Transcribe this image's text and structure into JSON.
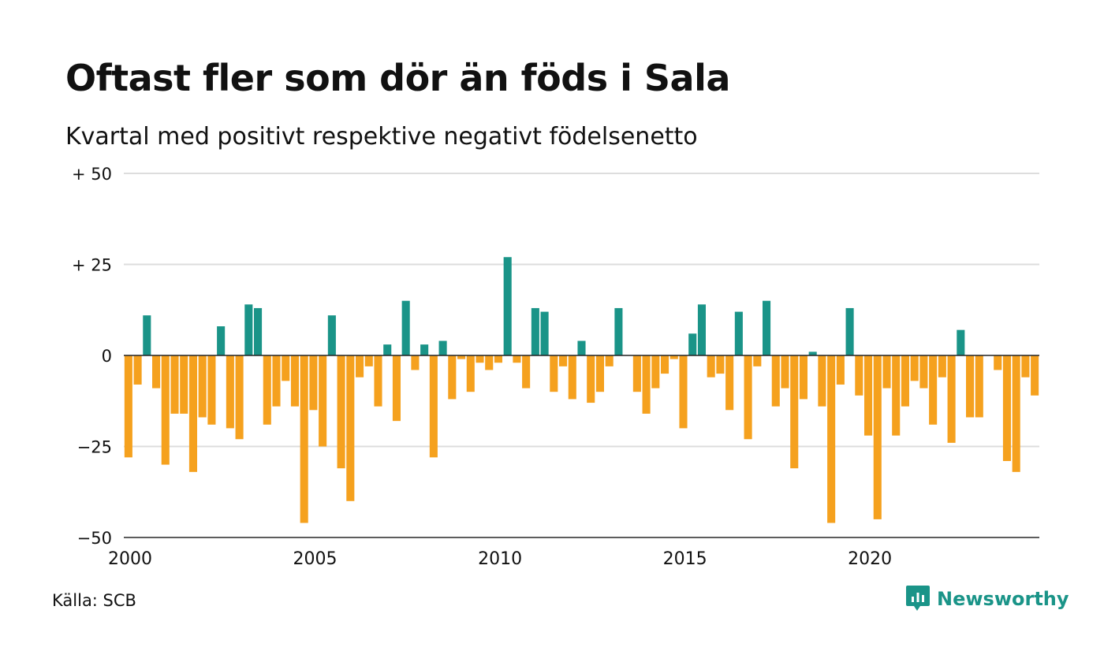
{
  "title": "Oftast fler som dör än föds i Sala",
  "subtitle": "Kvartal med positivt respektive negativt födelsenetto",
  "source": "Källa: SCB",
  "brand": {
    "name": "Newsworthy"
  },
  "colors": {
    "positive": "#1a9488",
    "negative": "#f5a11e",
    "grid": "#dddddd",
    "zero_line": "#222222",
    "brand": "#1a9488"
  },
  "chart_data": {
    "type": "bar",
    "ylim": [
      -50,
      50
    ],
    "y_ticks": [
      {
        "value": 50,
        "label": "+ 50"
      },
      {
        "value": 25,
        "label": "+ 25"
      },
      {
        "value": 0,
        "label": "0"
      },
      {
        "value": -25,
        "label": "−25"
      },
      {
        "value": -50,
        "label": "−50"
      }
    ],
    "x_ticks": [
      "2000",
      "2005",
      "2010",
      "2015",
      "2020"
    ],
    "grid": true,
    "series": [
      {
        "values": [
          -28,
          -8,
          11,
          -9,
          -30,
          -16,
          -16,
          -32,
          -17,
          -19,
          8,
          -20,
          -23,
          14,
          13,
          -19,
          -14,
          -7,
          -14,
          -46,
          -15,
          -25,
          11,
          -31,
          -40,
          -6,
          -3,
          -14,
          3,
          -18,
          15,
          -4,
          3,
          -28,
          4,
          -12,
          -1,
          -10,
          -2,
          -4,
          -2,
          27,
          -2,
          -9,
          13,
          12,
          -10,
          -3,
          -12,
          4,
          -13,
          -10,
          -3,
          13,
          0,
          -10,
          -16,
          -9,
          -5,
          -1,
          -20,
          6,
          14,
          -6,
          -5,
          -15,
          12,
          -23,
          -3,
          15,
          -14,
          -9,
          -31,
          -12,
          1,
          -14,
          -46,
          -8,
          13,
          -11,
          -22,
          -45,
          -9,
          -22,
          -14,
          -7,
          -9,
          -19,
          -6,
          -24,
          7,
          -17,
          -17,
          0,
          -4,
          -29,
          -32,
          -6,
          -11
        ]
      }
    ]
  }
}
